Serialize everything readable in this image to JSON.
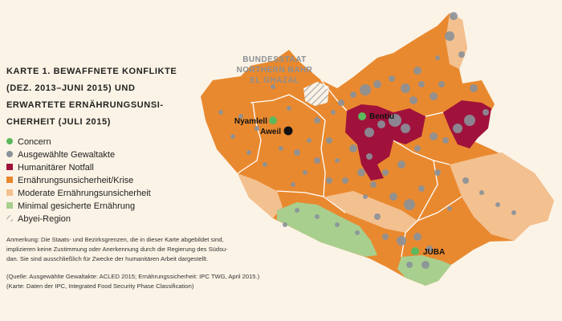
{
  "title": [
    "KARTE 1. BEWAFFNETE KONFLIKTE",
    "(DEZ. 2013–JUNI 2015) UND",
    "ERWARTETE ERNÄHRUNGSUNSI-",
    "CHERHEIT (JULI 2015)"
  ],
  "legend": [
    "Concern",
    "Ausgewählte Gewaltakte",
    "Humanitärer Notfall",
    "Ernährungsunsicherheit/Krise",
    "Moderate Ernährungsunsicherheit",
    "Minimal gesicherte Ernährung",
    "Abyei-Region"
  ],
  "note": [
    "Anmerkung: Die Staats- und Bezirksgrenzen, die in dieser Karte abgebildet sind,",
    "implizieren keine Zustimmung oder Anerkennung durch die Regierung des Südsu-",
    "dan. Sie sind ausschließlich für Zwecke der humanitären Arbeit dargestellt."
  ],
  "source": [
    "(Quelle: Ausgewählte Gewaltakte: ACLED 2015; Ernährungssicherheit: IPC TWG, April 2015.)",
    "(Karte: Daten der IPC, Integrated Food Security Phase Classification)"
  ],
  "map_labels": {
    "state": [
      "BUNDESSTAAT",
      "NORTHERN BAHR",
      "EL GHAZAL"
    ],
    "places": [
      "Nyamlell",
      "Aweil",
      "Bentiu",
      "JUBA"
    ]
  }
}
